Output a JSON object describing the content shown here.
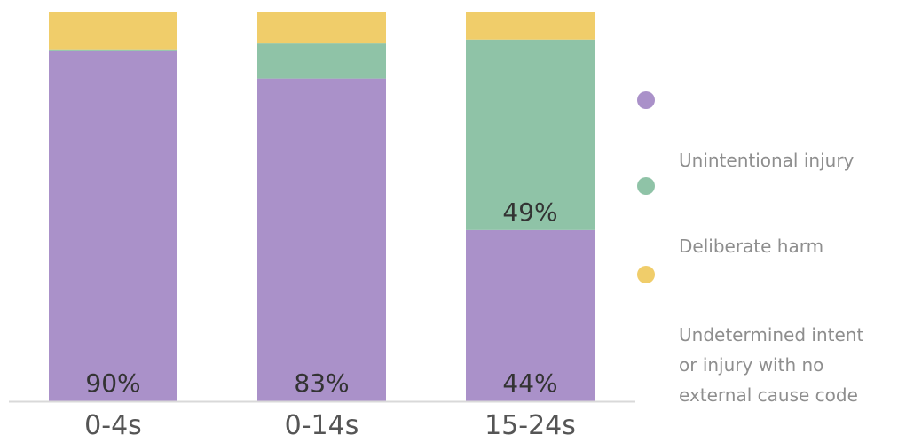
{
  "colors": {
    "unintentional": "#aa91c9",
    "deliberate": "#8fc3a7",
    "undetermined": "#f0cd6a",
    "axis": "#d9d9d9",
    "value_label": "#333333",
    "category_label": "#555555"
  },
  "legend": [
    {
      "label": "Unintentional injury",
      "color_key": "unintentional"
    },
    {
      "label": "Deliberate harm",
      "color_key": "deliberate"
    },
    {
      "label": "Undetermined intent\nor injury with no\nexternal cause code",
      "color_key": "undetermined"
    }
  ],
  "chart_data": {
    "type": "bar",
    "stacked": true,
    "categories": [
      "0-4s",
      "0-14s",
      "15-24s"
    ],
    "series": [
      {
        "name": "Unintentional injury",
        "values": [
          90,
          83,
          44
        ],
        "color": "#aa91c9",
        "labels": [
          "90%",
          "83%",
          "44%"
        ]
      },
      {
        "name": "Deliberate harm",
        "values": [
          0.5,
          9,
          49
        ],
        "color": "#8fc3a7",
        "labels": [
          "",
          "",
          "49%"
        ]
      },
      {
        "name": "Undetermined intent or injury with no external cause code",
        "values": [
          9.5,
          8,
          7
        ],
        "color": "#f0cd6a",
        "labels": [
          "",
          "",
          ""
        ]
      }
    ],
    "ylim": [
      0,
      100
    ],
    "grid": false,
    "legend_position": "right"
  }
}
